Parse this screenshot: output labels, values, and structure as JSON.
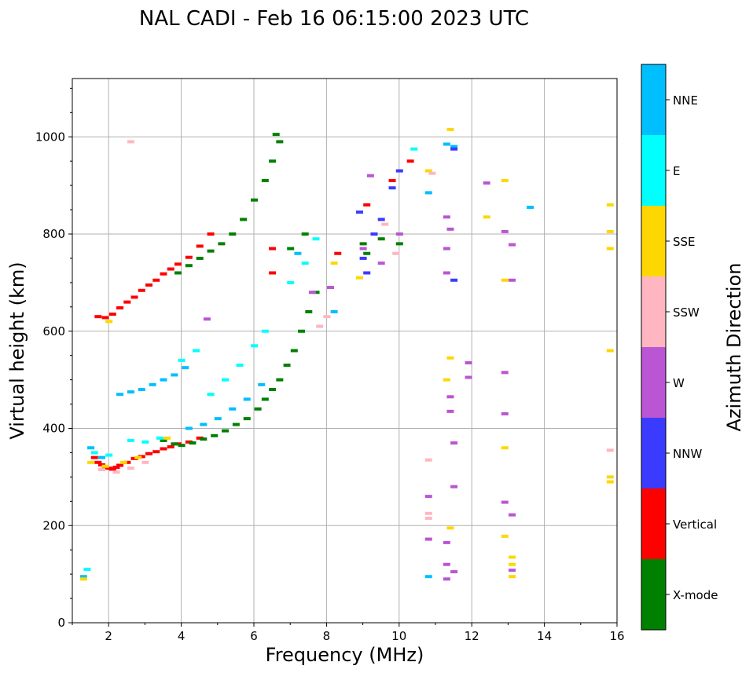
{
  "chart_data": {
    "type": "scatter",
    "title": "NAL CADI - Feb 16 06:15:00 2023 UTC",
    "xlabel": "Frequency (MHz)",
    "ylabel": "Virtual height (km)",
    "xlim": [
      1,
      16
    ],
    "ylim": [
      0,
      1120
    ],
    "xticks": [
      2,
      4,
      6,
      8,
      10,
      12,
      14,
      16
    ],
    "yticks": [
      0,
      200,
      400,
      600,
      800,
      1000
    ],
    "grid": true,
    "colorbar": {
      "label": "Azimuth Direction",
      "categories": [
        {
          "name": "NNE",
          "color": "#00bfff"
        },
        {
          "name": "E",
          "color": "#00ffff"
        },
        {
          "name": "SSE",
          "color": "#ffd700"
        },
        {
          "name": "SSW",
          "color": "#ffb6c1"
        },
        {
          "name": "W",
          "color": "#ba55d3"
        },
        {
          "name": "NNW",
          "color": "#3b3bff"
        },
        {
          "name": "Vertical",
          "color": "#ff0000"
        },
        {
          "name": "X-mode",
          "color": "#008000"
        }
      ]
    },
    "series": [
      {
        "name": "Vertical",
        "points": [
          [
            1.6,
            340
          ],
          [
            1.7,
            330
          ],
          [
            1.8,
            325
          ],
          [
            1.9,
            320
          ],
          [
            2.0,
            318
          ],
          [
            2.1,
            316
          ],
          [
            2.2,
            320
          ],
          [
            2.3,
            324
          ],
          [
            2.5,
            330
          ],
          [
            2.7,
            338
          ],
          [
            2.9,
            342
          ],
          [
            3.1,
            348
          ],
          [
            3.3,
            352
          ],
          [
            3.5,
            358
          ],
          [
            3.7,
            362
          ],
          [
            3.9,
            368
          ],
          [
            4.2,
            372
          ],
          [
            4.5,
            380
          ],
          [
            1.7,
            630
          ],
          [
            1.9,
            628
          ],
          [
            2.1,
            635
          ],
          [
            2.3,
            648
          ],
          [
            2.5,
            660
          ],
          [
            2.7,
            670
          ],
          [
            2.9,
            684
          ],
          [
            3.1,
            695
          ],
          [
            3.3,
            705
          ],
          [
            3.5,
            718
          ],
          [
            3.7,
            728
          ],
          [
            3.9,
            738
          ],
          [
            4.2,
            752
          ],
          [
            4.5,
            775
          ],
          [
            4.8,
            800
          ],
          [
            6.5,
            770
          ],
          [
            6.5,
            720
          ],
          [
            10.3,
            950
          ],
          [
            9.1,
            860
          ],
          [
            9.8,
            910
          ],
          [
            8.3,
            760
          ]
        ]
      },
      {
        "name": "X-mode",
        "points": [
          [
            3.5,
            375
          ],
          [
            3.8,
            368
          ],
          [
            4.0,
            365
          ],
          [
            4.3,
            370
          ],
          [
            4.6,
            378
          ],
          [
            4.9,
            385
          ],
          [
            5.2,
            395
          ],
          [
            5.5,
            408
          ],
          [
            5.8,
            420
          ],
          [
            6.1,
            440
          ],
          [
            6.3,
            460
          ],
          [
            6.5,
            480
          ],
          [
            6.7,
            500
          ],
          [
            6.9,
            530
          ],
          [
            7.1,
            560
          ],
          [
            7.3,
            600
          ],
          [
            7.5,
            640
          ],
          [
            7.7,
            680
          ],
          [
            3.9,
            720
          ],
          [
            4.2,
            735
          ],
          [
            4.5,
            750
          ],
          [
            4.8,
            765
          ],
          [
            5.1,
            780
          ],
          [
            5.4,
            800
          ],
          [
            5.7,
            830
          ],
          [
            6.0,
            870
          ],
          [
            6.3,
            910
          ],
          [
            6.5,
            950
          ],
          [
            6.7,
            990
          ],
          [
            6.6,
            1005
          ],
          [
            9.0,
            780
          ],
          [
            9.1,
            760
          ],
          [
            9.5,
            790
          ],
          [
            10.0,
            780
          ],
          [
            7.4,
            800
          ],
          [
            7.0,
            770
          ]
        ]
      },
      {
        "name": "NNE",
        "points": [
          [
            1.5,
            360
          ],
          [
            1.8,
            340
          ],
          [
            2.3,
            470
          ],
          [
            2.6,
            475
          ],
          [
            2.9,
            480
          ],
          [
            3.2,
            490
          ],
          [
            3.5,
            500
          ],
          [
            3.8,
            510
          ],
          [
            4.1,
            525
          ],
          [
            4.2,
            400
          ],
          [
            4.6,
            408
          ],
          [
            5.0,
            420
          ],
          [
            5.4,
            440
          ],
          [
            5.8,
            460
          ],
          [
            6.2,
            490
          ],
          [
            1.3,
            95
          ],
          [
            7.2,
            760
          ],
          [
            8.2,
            640
          ],
          [
            10.8,
            95
          ],
          [
            10.8,
            885
          ],
          [
            11.5,
            980
          ],
          [
            13.6,
            855
          ],
          [
            11.3,
            985
          ]
        ]
      },
      {
        "name": "E",
        "points": [
          [
            1.6,
            350
          ],
          [
            2.0,
            345
          ],
          [
            2.6,
            375
          ],
          [
            3.0,
            372
          ],
          [
            3.4,
            380
          ],
          [
            4.8,
            470
          ],
          [
            5.2,
            500
          ],
          [
            5.6,
            530
          ],
          [
            6.0,
            570
          ],
          [
            6.3,
            600
          ],
          [
            4.4,
            560
          ],
          [
            4.0,
            540
          ],
          [
            7.0,
            700
          ],
          [
            7.4,
            740
          ],
          [
            7.7,
            790
          ],
          [
            10.4,
            975
          ],
          [
            1.4,
            110
          ]
        ]
      },
      {
        "name": "SSE",
        "points": [
          [
            1.5,
            330
          ],
          [
            1.9,
            322
          ],
          [
            2.4,
            330
          ],
          [
            2.8,
            340
          ],
          [
            3.6,
            380
          ],
          [
            8.2,
            740
          ],
          [
            8.9,
            710
          ],
          [
            10.8,
            930
          ],
          [
            11.3,
            500
          ],
          [
            11.4,
            545
          ],
          [
            11.4,
            195
          ],
          [
            12.4,
            835
          ],
          [
            12.9,
            910
          ],
          [
            12.9,
            705
          ],
          [
            12.9,
            360
          ],
          [
            12.9,
            178
          ],
          [
            13.1,
            135
          ],
          [
            13.1,
            120
          ],
          [
            13.1,
            95
          ],
          [
            15.8,
            860
          ],
          [
            15.8,
            805
          ],
          [
            15.8,
            770
          ],
          [
            15.8,
            560
          ],
          [
            15.8,
            300
          ],
          [
            15.8,
            290
          ],
          [
            1.3,
            90
          ],
          [
            2.0,
            620
          ],
          [
            11.4,
            1015
          ]
        ]
      },
      {
        "name": "SSW",
        "points": [
          [
            1.8,
            315
          ],
          [
            2.2,
            310
          ],
          [
            2.6,
            318
          ],
          [
            3.0,
            330
          ],
          [
            7.8,
            610
          ],
          [
            8.0,
            630
          ],
          [
            9.6,
            820
          ],
          [
            10.8,
            335
          ],
          [
            10.8,
            225
          ],
          [
            10.8,
            215
          ],
          [
            15.8,
            355
          ],
          [
            2.6,
            990
          ],
          [
            9.9,
            760
          ],
          [
            10.9,
            925
          ]
        ]
      },
      {
        "name": "W",
        "points": [
          [
            4.7,
            625
          ],
          [
            7.6,
            680
          ],
          [
            8.1,
            690
          ],
          [
            9.0,
            770
          ],
          [
            9.2,
            920
          ],
          [
            9.5,
            740
          ],
          [
            10.0,
            800
          ],
          [
            10.8,
            260
          ],
          [
            10.8,
            172
          ],
          [
            11.3,
            835
          ],
          [
            11.3,
            770
          ],
          [
            11.3,
            720
          ],
          [
            11.4,
            435
          ],
          [
            11.4,
            465
          ],
          [
            11.5,
            370
          ],
          [
            11.5,
            280
          ],
          [
            11.3,
            165
          ],
          [
            11.3,
            120
          ],
          [
            11.3,
            90
          ],
          [
            11.5,
            105
          ],
          [
            11.9,
            535
          ],
          [
            11.9,
            505
          ],
          [
            12.4,
            905
          ],
          [
            12.9,
            805
          ],
          [
            12.9,
            515
          ],
          [
            12.9,
            430
          ],
          [
            12.9,
            248
          ],
          [
            13.1,
            222
          ],
          [
            13.1,
            108
          ],
          [
            13.1,
            705
          ],
          [
            13.1,
            778
          ],
          [
            11.4,
            810
          ]
        ]
      },
      {
        "name": "NNW",
        "points": [
          [
            8.9,
            845
          ],
          [
            9.3,
            800
          ],
          [
            9.5,
            830
          ],
          [
            9.0,
            750
          ],
          [
            9.8,
            895
          ],
          [
            10.0,
            930
          ],
          [
            11.5,
            705
          ],
          [
            11.5,
            975
          ],
          [
            9.1,
            720
          ]
        ]
      }
    ]
  }
}
